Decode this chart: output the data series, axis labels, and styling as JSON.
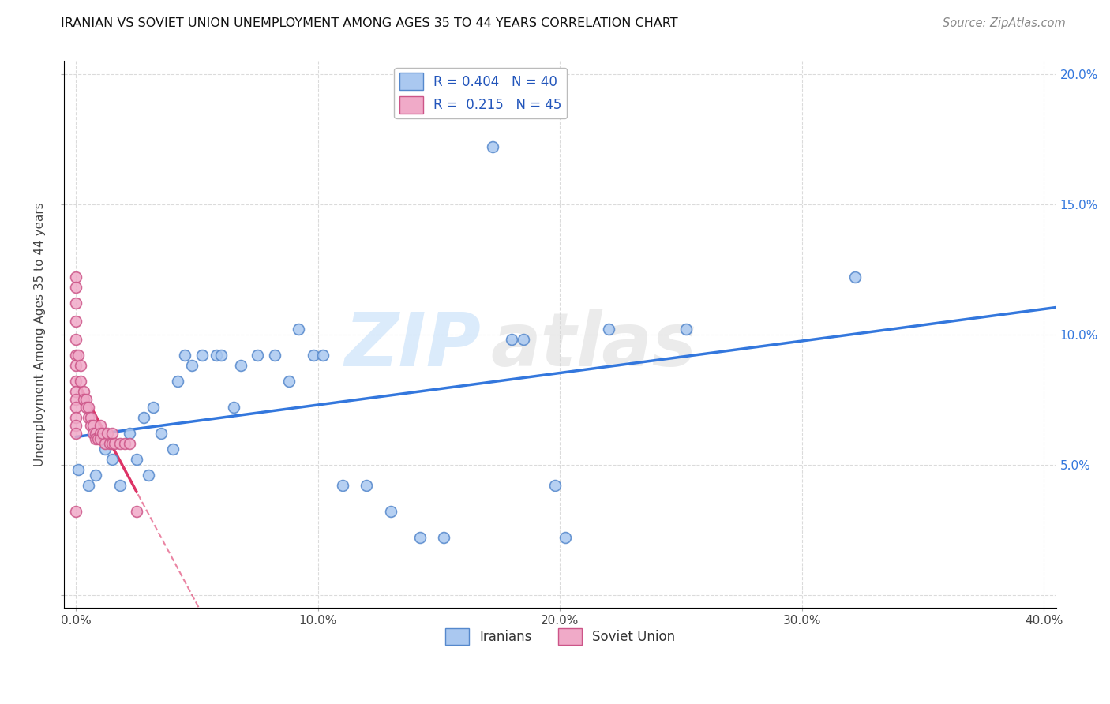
{
  "title": "IRANIAN VS SOVIET UNION UNEMPLOYMENT AMONG AGES 35 TO 44 YEARS CORRELATION CHART",
  "source": "Source: ZipAtlas.com",
  "ylabel": "Unemployment Among Ages 35 to 44 years",
  "xlim": [
    -0.005,
    0.405
  ],
  "ylim": [
    -0.005,
    0.205
  ],
  "xticks": [
    0.0,
    0.1,
    0.2,
    0.3,
    0.4
  ],
  "xticklabels": [
    "0.0%",
    "10.0%",
    "20.0%",
    "30.0%",
    "40.0%"
  ],
  "yticks": [
    0.0,
    0.05,
    0.1,
    0.15,
    0.2
  ],
  "yticklabels": [
    "",
    "5.0%",
    "10.0%",
    "15.0%",
    "20.0%"
  ],
  "iranians_color": "#aac8f0",
  "soviet_color": "#f0aac8",
  "iranians_edge": "#5588cc",
  "soviet_edge": "#cc5588",
  "trend_iranian_color": "#3377dd",
  "trend_soviet_color": "#dd3366",
  "R_iranian": 0.404,
  "N_iranian": 40,
  "R_soviet": 0.215,
  "N_soviet": 45,
  "background_color": "#ffffff",
  "grid_color": "#cccccc",
  "iranians_x": [
    0.001,
    0.005,
    0.008,
    0.012,
    0.015,
    0.018,
    0.022,
    0.025,
    0.028,
    0.03,
    0.032,
    0.035,
    0.04,
    0.042,
    0.045,
    0.048,
    0.052,
    0.058,
    0.06,
    0.065,
    0.068,
    0.075,
    0.082,
    0.088,
    0.092,
    0.098,
    0.102,
    0.11,
    0.12,
    0.13,
    0.142,
    0.152,
    0.172,
    0.18,
    0.185,
    0.198,
    0.202,
    0.22,
    0.252,
    0.322
  ],
  "iranians_y": [
    0.048,
    0.042,
    0.046,
    0.056,
    0.052,
    0.042,
    0.062,
    0.052,
    0.068,
    0.046,
    0.072,
    0.062,
    0.056,
    0.082,
    0.092,
    0.088,
    0.092,
    0.092,
    0.092,
    0.072,
    0.088,
    0.092,
    0.092,
    0.082,
    0.102,
    0.092,
    0.092,
    0.042,
    0.042,
    0.032,
    0.022,
    0.022,
    0.172,
    0.098,
    0.098,
    0.042,
    0.022,
    0.102,
    0.102,
    0.122
  ],
  "soviet_x": [
    0.0,
    0.0,
    0.0,
    0.0,
    0.0,
    0.0,
    0.0,
    0.0,
    0.0,
    0.0,
    0.0,
    0.0,
    0.0,
    0.0,
    0.0,
    0.001,
    0.002,
    0.002,
    0.003,
    0.003,
    0.004,
    0.004,
    0.005,
    0.005,
    0.006,
    0.006,
    0.007,
    0.007,
    0.008,
    0.008,
    0.009,
    0.01,
    0.01,
    0.01,
    0.011,
    0.012,
    0.013,
    0.014,
    0.015,
    0.015,
    0.016,
    0.018,
    0.02,
    0.022,
    0.025
  ],
  "soviet_y": [
    0.122,
    0.118,
    0.112,
    0.105,
    0.098,
    0.092,
    0.088,
    0.082,
    0.078,
    0.075,
    0.072,
    0.068,
    0.065,
    0.062,
    0.032,
    0.092,
    0.088,
    0.082,
    0.078,
    0.075,
    0.075,
    0.072,
    0.072,
    0.068,
    0.068,
    0.065,
    0.065,
    0.062,
    0.062,
    0.06,
    0.06,
    0.065,
    0.062,
    0.06,
    0.062,
    0.058,
    0.062,
    0.058,
    0.062,
    0.058,
    0.058,
    0.058,
    0.058,
    0.058,
    0.032
  ],
  "marker_size": 100,
  "marker_linewidth": 1.2
}
